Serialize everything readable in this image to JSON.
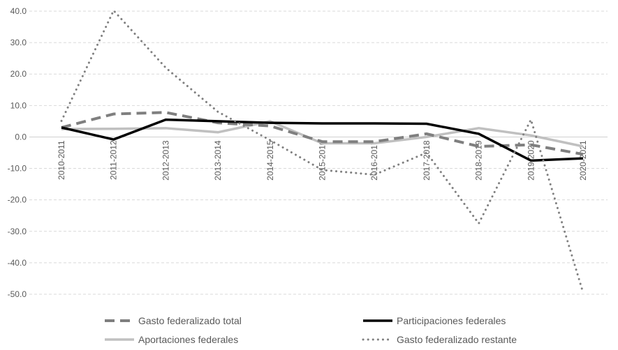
{
  "chart_data": {
    "type": "line",
    "title": "",
    "xlabel": "",
    "ylabel": "",
    "ylim": [
      -50,
      40
    ],
    "yticks": [
      40,
      30,
      20,
      10,
      0,
      -10,
      -20,
      -30,
      -40,
      -50
    ],
    "ytick_labels": [
      "40.0",
      "30.0",
      "20.0",
      "10.0",
      "0.0",
      "-10.0",
      "-20.0",
      "-30.0",
      "-40.0",
      "-50.0"
    ],
    "grid": true,
    "legend_position": "bottom",
    "categories": [
      "2010-2011",
      "2011-2012",
      "2012-2013",
      "2013-2014",
      "2014-2015",
      "2015-2016",
      "2016-2017",
      "2017-2018",
      "2018-2019",
      "2019-2020",
      "2020-2021"
    ],
    "series": [
      {
        "name": "Gasto federalizado total",
        "style": "dashed",
        "color": "#7f7f7f",
        "values": [
          3.0,
          7.3,
          7.8,
          4.5,
          3.5,
          -1.5,
          -1.5,
          1.0,
          -3.0,
          -2.5,
          -5.5
        ]
      },
      {
        "name": "Participaciones federales",
        "style": "solid",
        "color": "#000000",
        "values": [
          3.0,
          -0.8,
          5.5,
          5.0,
          4.5,
          4.3,
          4.3,
          4.2,
          1.0,
          -7.5,
          -6.8
        ]
      },
      {
        "name": "Aportaciones federales",
        "style": "solid-light",
        "color": "#bfbfbf",
        "values": [
          2.5,
          2.6,
          2.8,
          1.5,
          5.0,
          -2.0,
          -2.0,
          0.0,
          2.8,
          0.5,
          -3.0
        ]
      },
      {
        "name": "Gasto federalizado restante",
        "style": "dotted",
        "color": "#808080",
        "values": [
          5.1,
          40.2,
          22.0,
          8.0,
          -1.0,
          -10.5,
          -12.0,
          -5.0,
          -27.5,
          5.5,
          -49.5
        ]
      }
    ]
  }
}
